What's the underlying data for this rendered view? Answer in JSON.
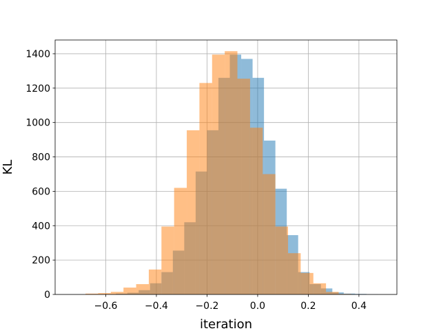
{
  "chart_data": {
    "type": "bar",
    "subtype": "overlapping-histogram",
    "title": "",
    "xlabel": "iteration",
    "ylabel": "KL",
    "xlim": [
      -0.8,
      0.55
    ],
    "ylim": [
      0,
      1480
    ],
    "xticks": [
      -0.6,
      -0.4,
      -0.2,
      0.0,
      0.2,
      0.4
    ],
    "xtick_labels": [
      "−0.6",
      "−0.4",
      "−0.2",
      "0.0",
      "0.2",
      "0.4"
    ],
    "yticks": [
      0,
      200,
      400,
      600,
      800,
      1000,
      1200,
      1400
    ],
    "ytick_labels": [
      "0",
      "200",
      "400",
      "600",
      "800",
      "1000",
      "1200",
      "1400"
    ],
    "grid": true,
    "legend": "none",
    "series": [
      {
        "color": "#1f77b4",
        "alpha": 0.5,
        "bins": [
          [
            -0.56,
            -0.515,
            5
          ],
          [
            -0.515,
            -0.47,
            10
          ],
          [
            -0.47,
            -0.425,
            25
          ],
          [
            -0.425,
            -0.38,
            65
          ],
          [
            -0.38,
            -0.335,
            130
          ],
          [
            -0.335,
            -0.29,
            255
          ],
          [
            -0.29,
            -0.245,
            420
          ],
          [
            -0.245,
            -0.2,
            715
          ],
          [
            -0.2,
            -0.155,
            955
          ],
          [
            -0.155,
            -0.11,
            1260
          ],
          [
            -0.11,
            -0.065,
            1395
          ],
          [
            -0.065,
            -0.02,
            1370
          ],
          [
            -0.02,
            0.025,
            1260
          ],
          [
            0.025,
            0.07,
            895
          ],
          [
            0.07,
            0.115,
            615
          ],
          [
            0.115,
            0.16,
            345
          ],
          [
            0.16,
            0.205,
            130
          ],
          [
            0.205,
            0.25,
            60
          ],
          [
            0.25,
            0.295,
            35
          ],
          [
            0.295,
            0.34,
            12
          ],
          [
            0.34,
            0.385,
            5
          ],
          [
            0.385,
            0.43,
            3
          ],
          [
            0.43,
            0.475,
            1
          ]
        ]
      },
      {
        "color": "#ff7f0e",
        "alpha": 0.5,
        "bins": [
          [
            -0.68,
            -0.63,
            5
          ],
          [
            -0.63,
            -0.58,
            8
          ],
          [
            -0.58,
            -0.53,
            15
          ],
          [
            -0.53,
            -0.48,
            40
          ],
          [
            -0.48,
            -0.43,
            60
          ],
          [
            -0.43,
            -0.38,
            145
          ],
          [
            -0.38,
            -0.33,
            395
          ],
          [
            -0.33,
            -0.28,
            620
          ],
          [
            -0.28,
            -0.23,
            955
          ],
          [
            -0.23,
            -0.18,
            1230
          ],
          [
            -0.18,
            -0.13,
            1395
          ],
          [
            -0.13,
            -0.08,
            1415
          ],
          [
            -0.08,
            -0.03,
            1255
          ],
          [
            -0.03,
            0.02,
            970
          ],
          [
            0.02,
            0.07,
            700
          ],
          [
            0.07,
            0.12,
            395
          ],
          [
            0.12,
            0.17,
            240
          ],
          [
            0.17,
            0.22,
            125
          ],
          [
            0.22,
            0.27,
            65
          ],
          [
            0.27,
            0.32,
            15
          ],
          [
            0.32,
            0.37,
            3
          ]
        ]
      }
    ]
  }
}
